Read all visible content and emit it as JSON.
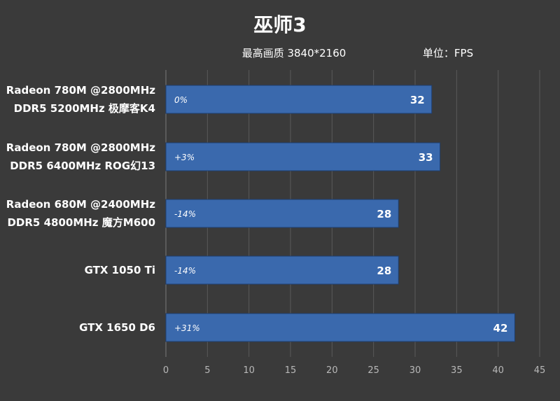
{
  "header": {
    "title": "巫师3",
    "setting": "最高画质 3840*2160",
    "unit": "单位：FPS"
  },
  "chart_data": {
    "type": "bar",
    "orientation": "horizontal",
    "categories": [
      [
        "Radeon 780M @2800MHz",
        "DDR5 5200MHz 极摩客K4"
      ],
      [
        "Radeon 780M @2800MHz",
        "DDR5 6400MHz ROG幻13"
      ],
      [
        "Radeon 680M @2400MHz",
        "DDR5 4800MHz 魔方M600"
      ],
      [
        "GTX 1050 Ti"
      ],
      [
        "GTX 1650 D6"
      ]
    ],
    "values": [
      32,
      33,
      28,
      28,
      42
    ],
    "percent_labels": [
      "0%",
      "+3%",
      "-14%",
      "-14%",
      "+31%"
    ],
    "xlim": [
      0,
      45
    ],
    "xticks": [
      "0",
      "5",
      "10",
      "15",
      "20",
      "25",
      "30",
      "35",
      "40",
      "45"
    ],
    "grid": true,
    "colors": {
      "bar": "#3a69ad",
      "background": "#3a3a3a",
      "text": "#ffffff"
    }
  }
}
